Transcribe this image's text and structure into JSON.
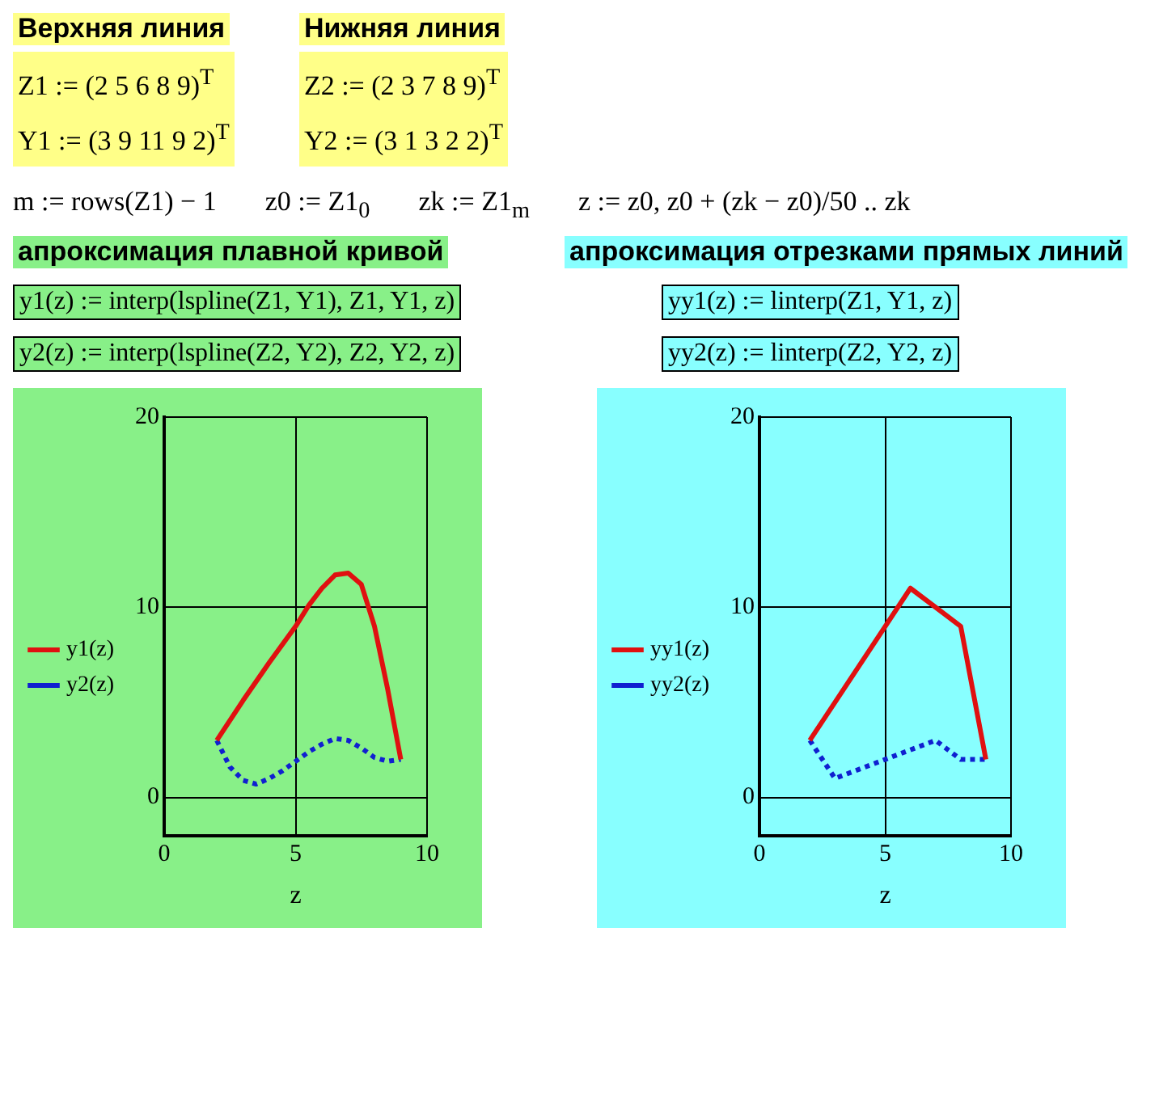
{
  "chart_data": [
    {
      "type": "line",
      "title": "апроксимация плавной кривой",
      "xlabel": "z",
      "annotations": [
        "Верхняя линия",
        "Z1 := (2  5  6  8  9)$^{T}$",
        "Y1 := (3  9  11  9  2)$^{T}$",
        "Нижняя линия",
        "Z2 := (2  3  7  8  9)$^{T}$",
        "Y2 := (3  1  3  2  2)$^{T}$",
        "m := rows(Z1) − 1",
        "z0 := Z1$_{0}$",
        "zk := Z1$_{m}$",
        "z := z0, z0 + (zk − z0)/50 .. zk",
        "y1(z) := interp(lspline(Z1, Y1), Z1, Y1, z)",
        "y2(z) := interp(lspline(Z2, Y2), Z2, Y2, z)"
      ],
      "series": [
        {
          "name": "y1(z)",
          "color": "#e01010",
          "line_style": "solid",
          "x": [
            2,
            3,
            4,
            5,
            5.5,
            6,
            6.5,
            7,
            7.5,
            8,
            8.5,
            9
          ],
          "values": [
            3,
            5.1,
            7.1,
            9,
            10.1,
            11,
            11.7,
            11.8,
            11.2,
            9,
            5.7,
            2
          ]
        },
        {
          "name": "y2(z)",
          "color": "#1020d0",
          "line_style": "dotted",
          "x": [
            2,
            2.5,
            3,
            3.5,
            4,
            4.5,
            5,
            5.5,
            6,
            6.5,
            7,
            7.5,
            8,
            8.5,
            9
          ],
          "values": [
            3,
            1.6,
            0.9,
            0.7,
            1,
            1.4,
            1.9,
            2.4,
            2.8,
            3.1,
            3,
            2.6,
            2.1,
            1.9,
            2
          ]
        }
      ],
      "xlim": [
        0,
        10
      ],
      "xticks": [
        0,
        5,
        10
      ],
      "ylim": [
        -2,
        20
      ],
      "yticks": [
        0,
        10,
        20
      ],
      "grid": true,
      "legend": "left",
      "marker": "none"
    },
    {
      "type": "line",
      "title": "апроксимация отрезками прямых линий",
      "xlabel": "z",
      "annotations": [
        "yy1(z) := linterp(Z1, Y1, z)",
        "yy2(z) := linterp(Z2, Y2, z)"
      ],
      "series": [
        {
          "name": "yy1(z)",
          "color": "#e01010",
          "line_style": "solid",
          "x": [
            2,
            5,
            6,
            8,
            9
          ],
          "values": [
            3,
            9,
            11,
            9,
            2
          ]
        },
        {
          "name": "yy2(z)",
          "color": "#1020d0",
          "line_style": "dotted",
          "x": [
            2,
            3,
            7,
            8,
            9
          ],
          "values": [
            3,
            1,
            3,
            2,
            2
          ]
        }
      ],
      "xlim": [
        0,
        10
      ],
      "xticks": [
        0,
        5,
        10
      ],
      "ylim": [
        -2,
        20
      ],
      "yticks": [
        0,
        10,
        20
      ],
      "grid": true,
      "legend": "left",
      "marker": "none"
    }
  ]
}
